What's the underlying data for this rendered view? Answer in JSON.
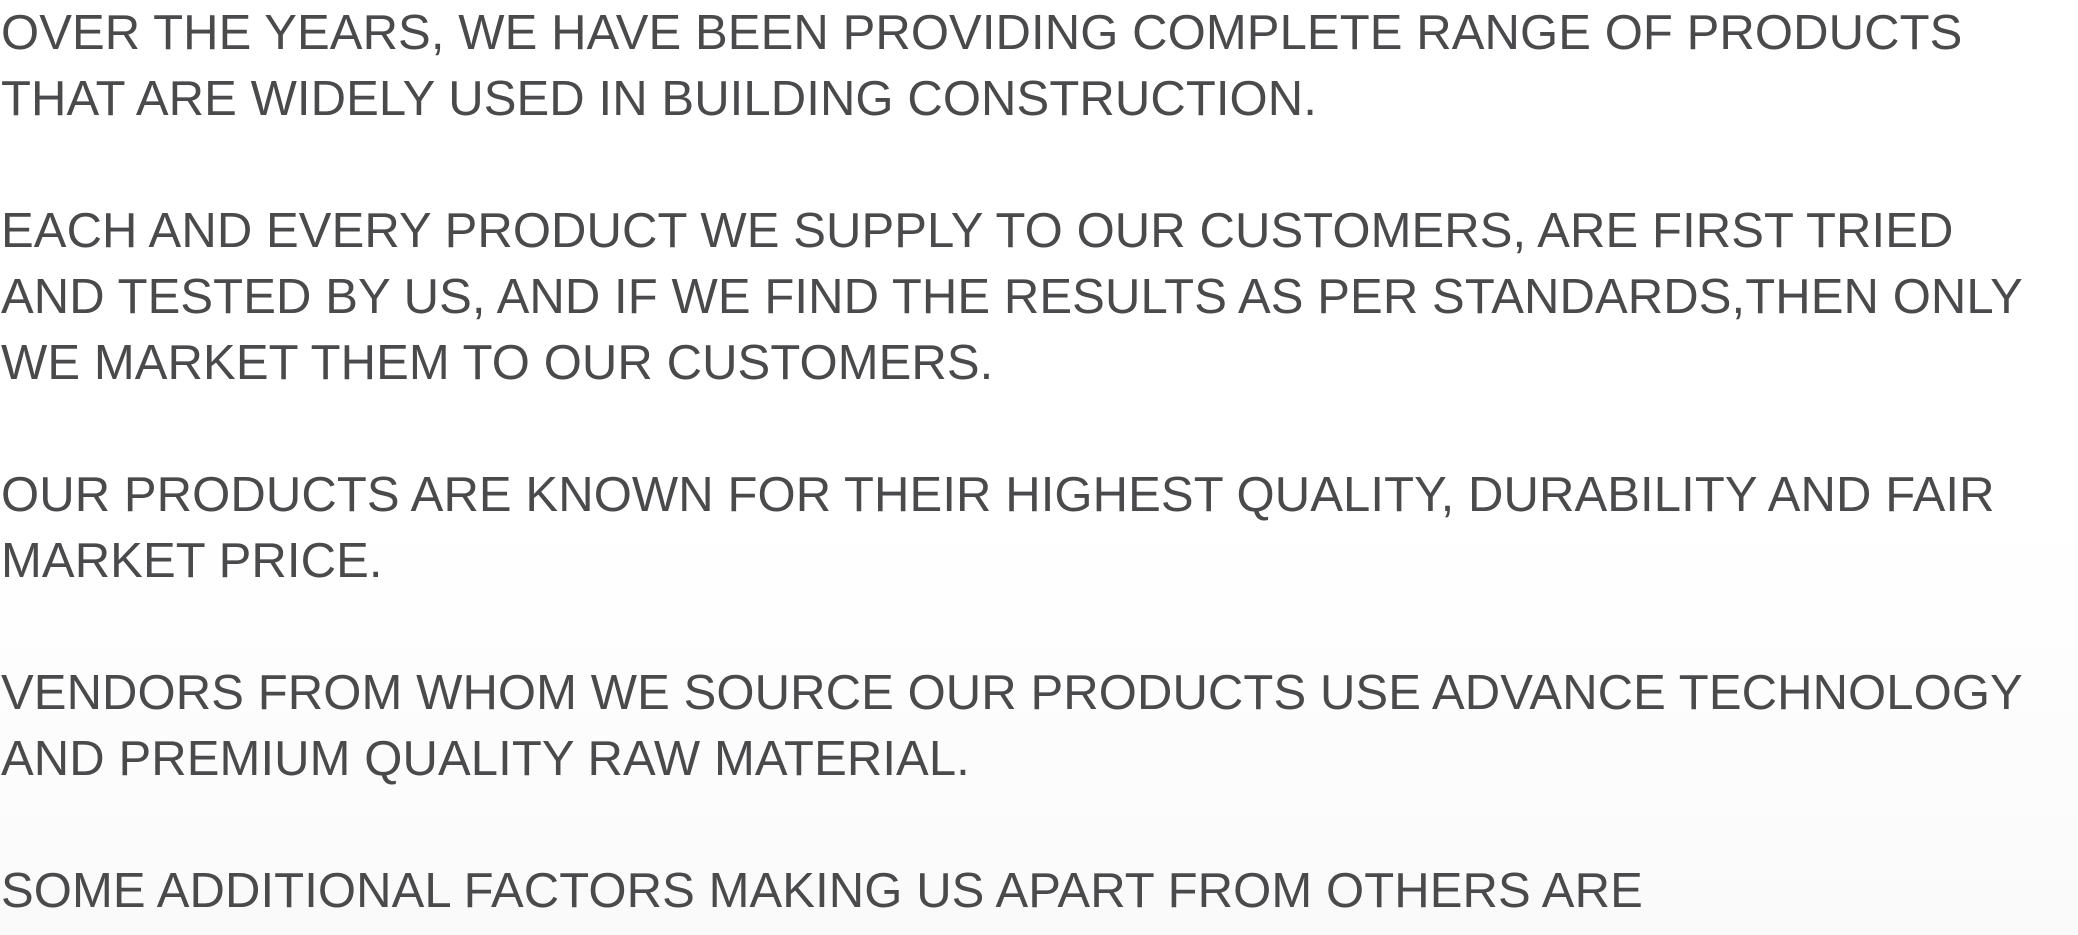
{
  "paragraphs": [
    {
      "lines": [
        "OVER THE YEARS, WE HAVE BEEN PROVIDING COMPLETE RANGE OF PRODUCTS",
        "THAT ARE WIDELY USED IN BUILDING CONSTRUCTION."
      ]
    },
    {
      "lines": [
        "EACH AND EVERY PRODUCT WE SUPPLY TO OUR CUSTOMERS, ARE FIRST TRIED",
        "AND TESTED BY US, AND IF WE FIND THE RESULTS AS PER STANDARDS,THEN ONLY",
        "WE MARKET THEM TO OUR CUSTOMERS."
      ]
    },
    {
      "lines": [
        "OUR PRODUCTS ARE KNOWN FOR THEIR HIGHEST QUALITY, DURABILITY AND FAIR",
        "MARKET PRICE."
      ]
    },
    {
      "lines": [
        "VENDORS FROM WHOM WE SOURCE OUR PRODUCTS USE ADVANCE TECHNOLOGY",
        "AND PREMIUM QUALITY RAW MATERIAL."
      ]
    },
    {
      "lines": [
        "SOME ADDITIONAL FACTORS MAKING US APART FROM OTHERS ARE"
      ]
    }
  ],
  "colors": {
    "text": "#4a4a4d",
    "background": "#ffffff"
  }
}
